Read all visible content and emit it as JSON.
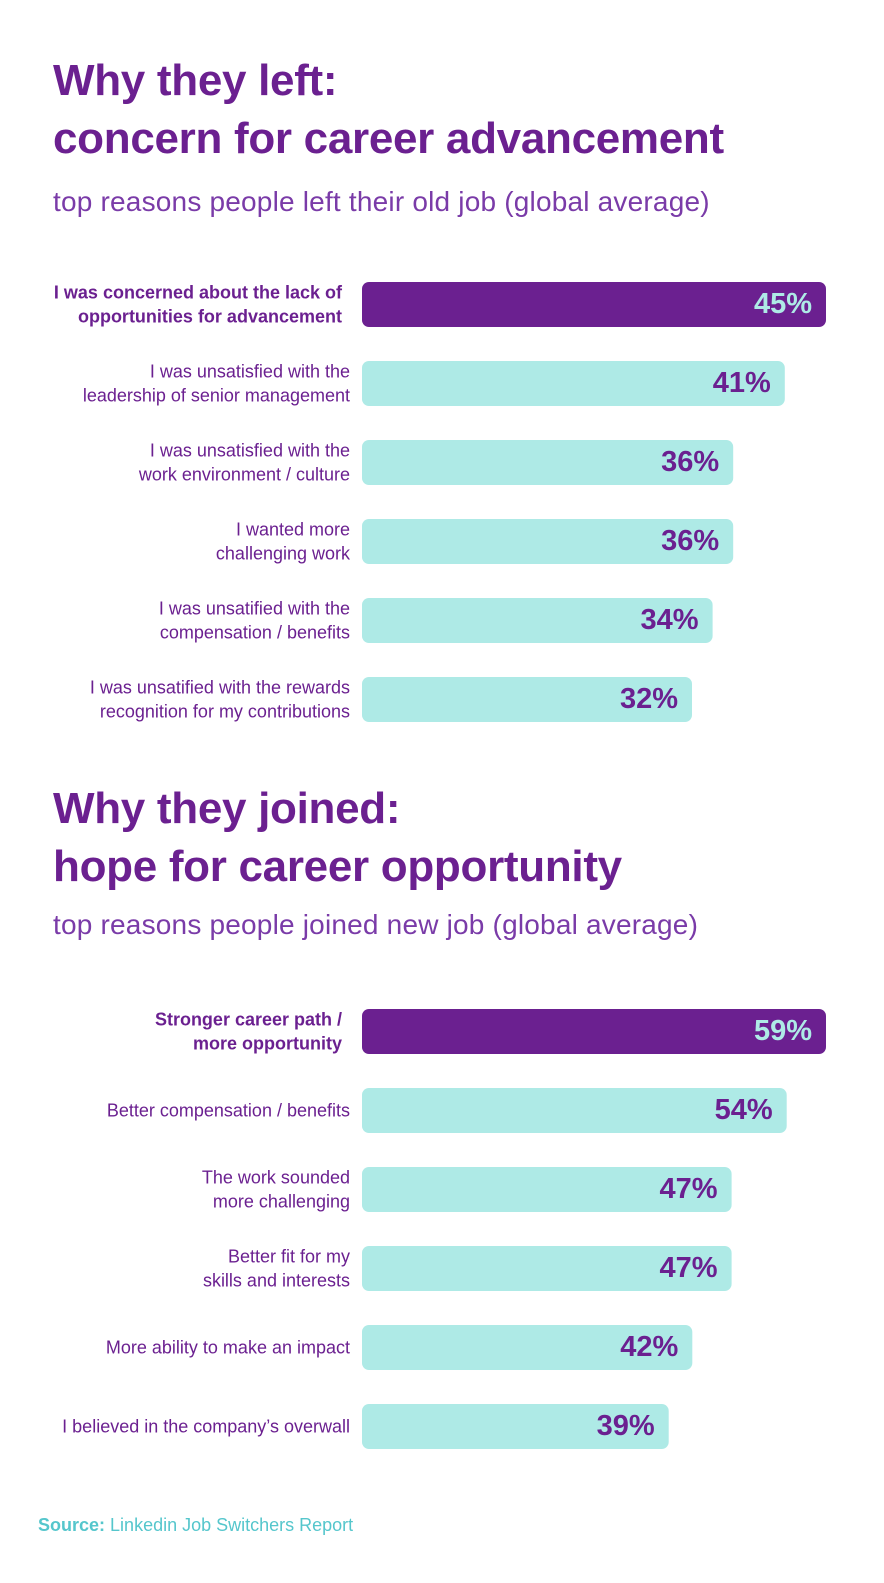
{
  "chart_data": [
    {
      "type": "bar",
      "orientation": "horizontal",
      "title": "Why they left:\nconcern for career advancement",
      "subtitle": "top reasons people left their old job (global average)",
      "categories": [
        "I was concerned about the lack of\nopportunities for advancement",
        "I was unsatisfied with the\nleadership of senior management",
        "I was unsatisfied with the\nwork environment / culture",
        "I wanted more\nchallenging work",
        "I was unsatified with the\ncompensation / benefits",
        "I was unsatified with the rewards\nrecognition for my contributions"
      ],
      "values": [
        45,
        41,
        36,
        36,
        34,
        32
      ],
      "value_labels": [
        "45%",
        "41%",
        "36%",
        "36%",
        "34%",
        "32%"
      ],
      "highlight_index": 0,
      "colors": {
        "highlight": "#6b2090",
        "bar": "#aeeae6",
        "label": "#6b2090",
        "highlight_text": "#aeeae6"
      }
    },
    {
      "type": "bar",
      "orientation": "horizontal",
      "title": "Why they joined:\nhope for career opportunity",
      "subtitle": "top reasons people joined new job (global average)",
      "categories": [
        "Stronger career path /\nmore opportunity",
        "Better compensation / benefits",
        "The work sounded\nmore challenging",
        "Better fit for my\nskills and interests",
        "More ability to make an impact",
        "I believed in the company’s overwall"
      ],
      "values": [
        59,
        54,
        47,
        47,
        42,
        39
      ],
      "value_labels": [
        "59%",
        "54%",
        "47%",
        "47%",
        "42%",
        "39%"
      ],
      "highlight_index": 0,
      "colors": {
        "highlight": "#6b2090",
        "bar": "#aeeae6",
        "label": "#6b2090",
        "highlight_text": "#aeeae6"
      }
    }
  ],
  "source": {
    "label": "Source:",
    "text": "Linkedin Job Switchers Report"
  }
}
